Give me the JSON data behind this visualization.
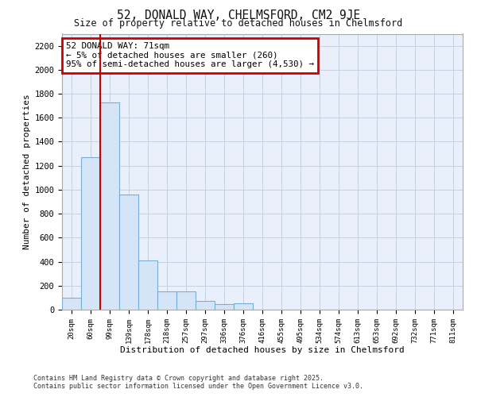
{
  "title_line1": "52, DONALD WAY, CHELMSFORD, CM2 9JE",
  "title_line2": "Size of property relative to detached houses in Chelmsford",
  "xlabel": "Distribution of detached houses by size in Chelmsford",
  "ylabel": "Number of detached properties",
  "footnote1": "Contains HM Land Registry data © Crown copyright and database right 2025.",
  "footnote2": "Contains public sector information licensed under the Open Government Licence v3.0.",
  "annotation_line1": "52 DONALD WAY: 71sqm",
  "annotation_line2": "← 5% of detached houses are smaller (260)",
  "annotation_line3": "95% of semi-detached houses are larger (4,530) →",
  "bar_color": "#d6e4f7",
  "bar_edge_color": "#7aadd4",
  "vline_color": "#cc0000",
  "vline_x_pos": 1.5,
  "categories": [
    "20sqm",
    "60sqm",
    "99sqm",
    "139sqm",
    "178sqm",
    "218sqm",
    "257sqm",
    "297sqm",
    "336sqm",
    "376sqm",
    "416sqm",
    "455sqm",
    "495sqm",
    "534sqm",
    "574sqm",
    "613sqm",
    "653sqm",
    "692sqm",
    "732sqm",
    "771sqm",
    "811sqm"
  ],
  "values": [
    100,
    1270,
    1730,
    960,
    410,
    155,
    150,
    70,
    45,
    50,
    0,
    0,
    0,
    0,
    0,
    0,
    0,
    0,
    0,
    0,
    0
  ],
  "ylim": [
    0,
    2300
  ],
  "yticks": [
    0,
    200,
    400,
    600,
    800,
    1000,
    1200,
    1400,
    1600,
    1800,
    2000,
    2200
  ],
  "bg_color": "#eaf0fb",
  "grid_color": "#c8cfe0",
  "annotation_box_color": "#cc0000",
  "fig_bg_color": "#ffffff",
  "fig_width": 6.0,
  "fig_height": 5.0
}
